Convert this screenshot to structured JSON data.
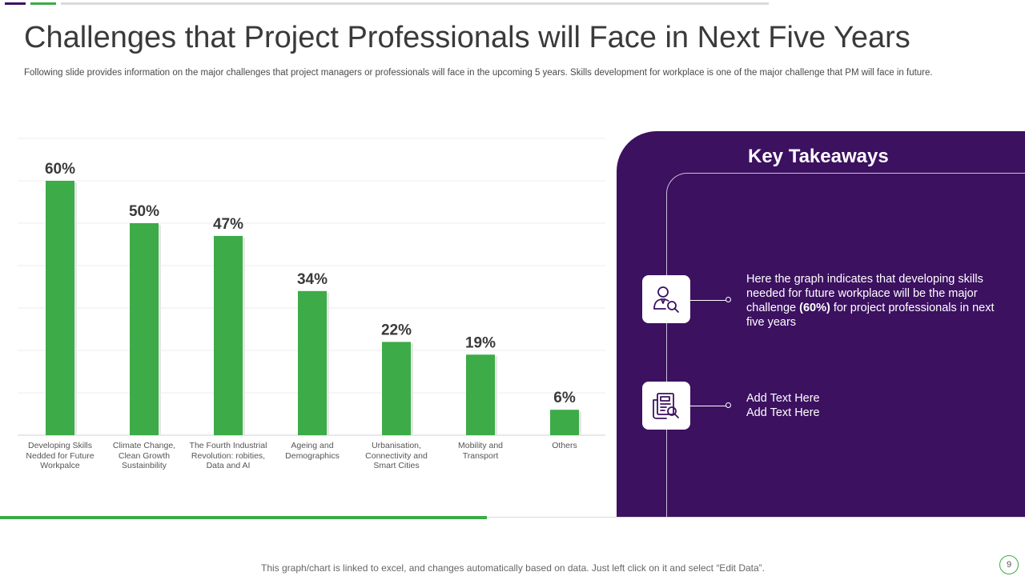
{
  "header": {
    "title": "Challenges that Project Professionals will Face in Next Five Years",
    "subtitle": "Following slide provides information on the major challenges that project managers or professionals will face in the upcoming 5 years. Skills development for workplace is one of the major challenge that PM will face in future."
  },
  "chart_data": {
    "type": "bar",
    "categories": [
      "Developing Skills Nedded for Future Workpalce",
      "Climate Change, Clean Growth Sustainbility",
      "The Fourth Industrial Revolution: robities, Data and AI",
      "Ageing and Demographics",
      "Urbanisation, Connectivity and Smart Cities",
      "Mobility and Transport",
      "Others"
    ],
    "category_lines": [
      [
        "Developing Skills",
        "Nedded for Future",
        "Workpalce"
      ],
      [
        "Climate Change,",
        "Clean Growth",
        "Sustainbility"
      ],
      [
        "The Fourth Industrial",
        "Revolution: robities,",
        "Data and AI"
      ],
      [
        "Ageing and",
        "Demographics"
      ],
      [
        "Urbanisation,",
        "Connectivity and",
        "Smart Cities"
      ],
      [
        "Mobility and",
        "Transport"
      ],
      [
        "Others"
      ]
    ],
    "values": [
      60,
      50,
      47,
      34,
      22,
      19,
      6
    ],
    "data_labels": [
      "60%",
      "50%",
      "47%",
      "34%",
      "22%",
      "19%",
      "6%"
    ],
    "unit": "%",
    "ylim": [
      0,
      70
    ],
    "grid": true,
    "bar_color": "#3dab48"
  },
  "takeaways": {
    "title": "Key Takeaways",
    "item1": {
      "icon": "person-search-icon",
      "text_before": "Here the graph indicates that developing skills needed for future workplace will be the major challenge ",
      "text_bold": "(60%)",
      "text_after": " for project professionals in next five years"
    },
    "item2": {
      "icon": "document-search-icon",
      "line1": "Add Text Here",
      "line2": "Add Text Here"
    }
  },
  "footer": {
    "note": "This graph/chart is linked to excel,  and changes automatically based on data. Just left click on it and select “Edit Data”.",
    "page_number": "9"
  },
  "colors": {
    "accent_green": "#3dab48",
    "accent_purple": "#3c1160"
  }
}
